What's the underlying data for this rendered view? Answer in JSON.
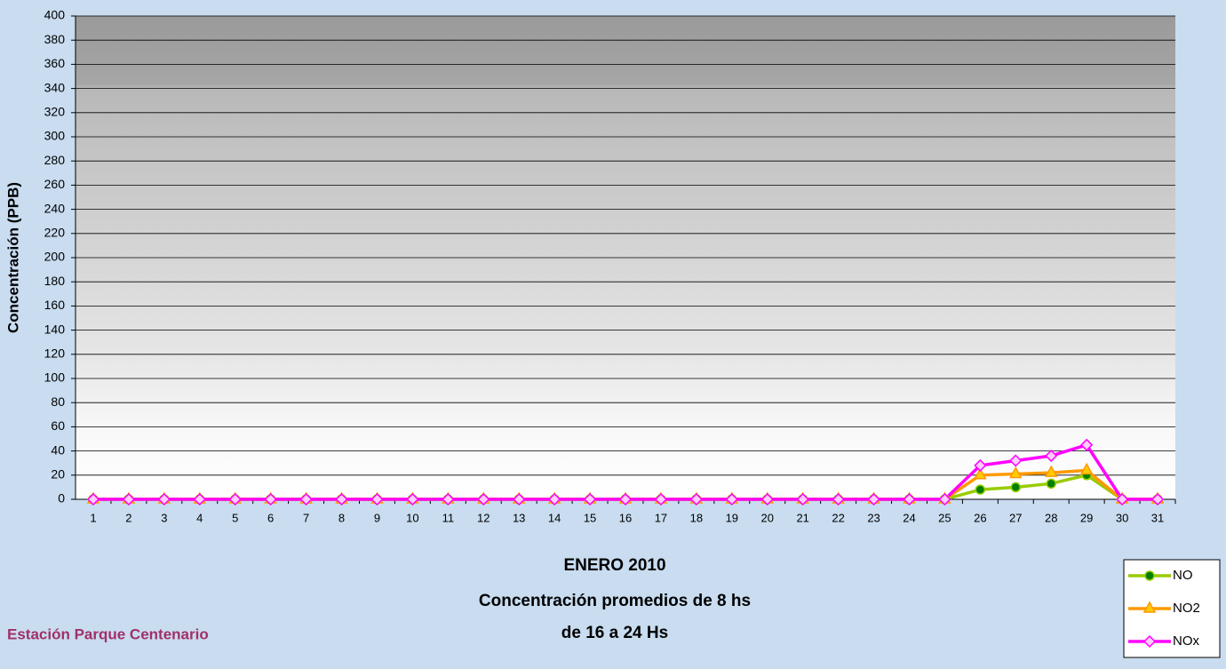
{
  "chart_data": {
    "type": "line",
    "title": "ENERO 2010",
    "subtitle": [
      "Concentración promedios de 8 hs",
      "de 16 a 24 Hs"
    ],
    "annotation": "Estación Parque Centenario",
    "y_label": "Concentración  (PPB)",
    "categories": [
      "1",
      "2",
      "3",
      "4",
      "5",
      "6",
      "7",
      "8",
      "9",
      "10",
      "11",
      "12",
      "13",
      "14",
      "15",
      "16",
      "17",
      "18",
      "19",
      "20",
      "21",
      "22",
      "23",
      "24",
      "25",
      "26",
      "27",
      "28",
      "29",
      "30",
      "31"
    ],
    "series": [
      {
        "name": "NO",
        "color": "#99cc00",
        "marker": "circle",
        "values": [
          0,
          0,
          0,
          0,
          0,
          0,
          0,
          0,
          0,
          0,
          0,
          0,
          0,
          0,
          0,
          0,
          0,
          0,
          0,
          0,
          0,
          0,
          0,
          0,
          0,
          8,
          10,
          13,
          20,
          0,
          0
        ]
      },
      {
        "name": "NO2",
        "color": "#ff9900",
        "marker": "triangle",
        "values": [
          0,
          0,
          0,
          0,
          0,
          0,
          0,
          0,
          0,
          0,
          0,
          0,
          0,
          0,
          0,
          0,
          0,
          0,
          0,
          0,
          0,
          0,
          0,
          0,
          0,
          20,
          21,
          22,
          24,
          0,
          0
        ]
      },
      {
        "name": "NOx",
        "color": "#ff00ff",
        "marker": "diamond",
        "values": [
          0,
          0,
          0,
          0,
          0,
          0,
          0,
          0,
          0,
          0,
          0,
          0,
          0,
          0,
          0,
          0,
          0,
          0,
          0,
          0,
          0,
          0,
          0,
          0,
          0,
          28,
          32,
          36,
          45,
          0,
          0
        ]
      }
    ],
    "ylim": [
      0,
      400
    ],
    "yticks": [
      0,
      20,
      40,
      60,
      80,
      100,
      120,
      140,
      160,
      180,
      200,
      220,
      240,
      260,
      280,
      300,
      320,
      340,
      360,
      380,
      400
    ],
    "grid": true,
    "legend": "bottom-right"
  }
}
